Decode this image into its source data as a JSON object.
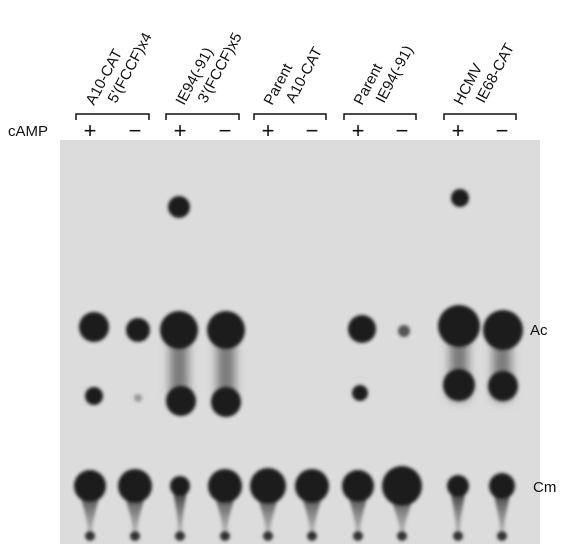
{
  "row_label": "cAMP",
  "groups": [
    {
      "label_lines": [
        "A10-CAT",
        "5'(FCCF)x4"
      ],
      "signs": [
        "+",
        "−"
      ]
    },
    {
      "label_lines": [
        "IE94(-91)",
        "3'(FCCF)x5"
      ],
      "signs": [
        "+",
        "−"
      ]
    },
    {
      "label_lines": [
        "Parent",
        "A10-CAT"
      ],
      "signs": [
        "+",
        "−"
      ]
    },
    {
      "label_lines": [
        "Parent",
        "IE94(-91)"
      ],
      "signs": [
        "+",
        "−"
      ]
    },
    {
      "label_lines": [
        "HCMV",
        "IE68-CAT"
      ],
      "signs": [
        "+",
        "−"
      ]
    }
  ],
  "spot_labels": [
    "Ac",
    "Cm"
  ]
}
